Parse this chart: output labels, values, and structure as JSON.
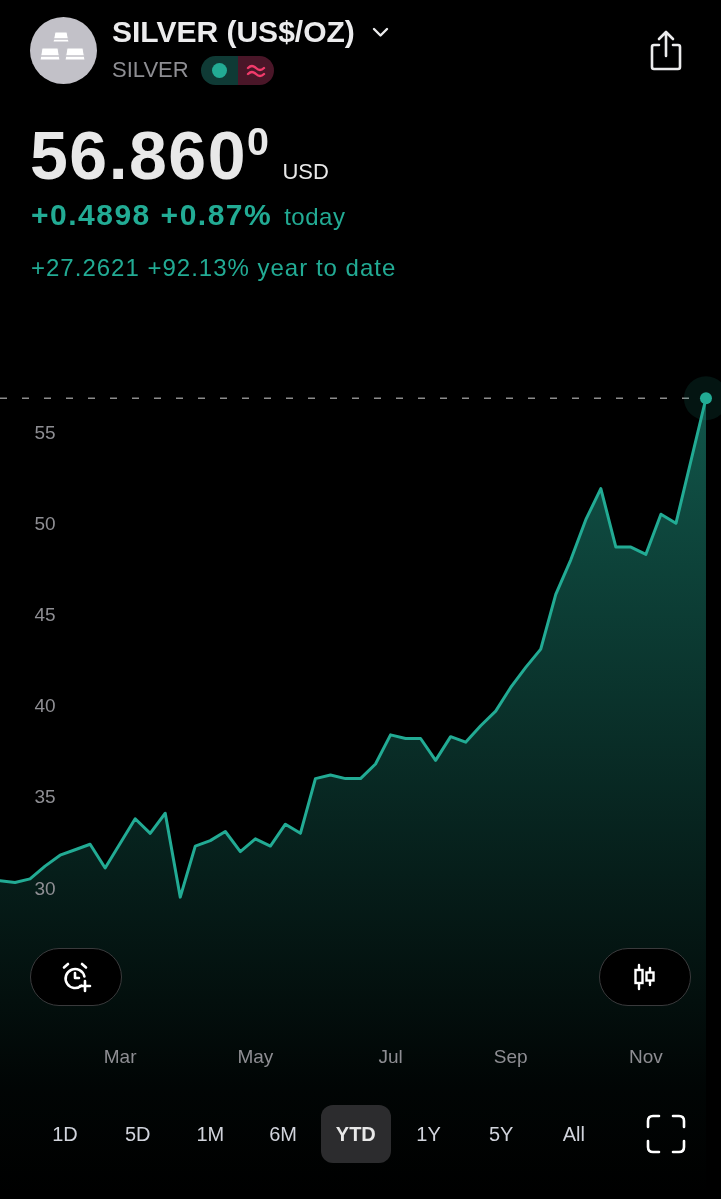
{
  "chart_data": {
    "type": "area",
    "title": "SILVER (US$/OZ)",
    "subtitle": "SILVER",
    "annotations": [
      "56.860$^{0}$",
      "USD",
      "+0.4898 +0.87%",
      "today",
      "+27.2621 +92.13% year to date",
      "1D",
      "5D",
      "1M",
      "6M",
      "YTD",
      "1Y",
      "5Y",
      "All"
    ],
    "x": [
      "--01-06",
      "--01-13",
      "--01-20",
      "--01-27",
      "--02-03",
      "--02-10",
      "--02-17",
      "--02-24",
      "--03-10",
      "--03-17",
      "--03-24",
      "--03-31",
      "--04-07",
      "--04-14",
      "--04-21",
      "--04-28",
      "--05-05",
      "--05-12",
      "--05-19",
      "--05-26",
      "--06-02",
      "--06-09",
      "--06-16",
      "--06-23",
      "--06-30",
      "--07-07",
      "--07-14",
      "--07-21",
      "--07-28",
      "--08-04",
      "--08-11",
      "--08-18",
      "--08-25",
      "--09-01",
      "--09-08",
      "--09-15",
      "--09-22",
      "--09-29",
      "--10-06",
      "--10-13",
      "--10-20",
      "--10-27",
      "--11-03",
      "--11-10",
      "--11-17",
      "--12-01"
    ],
    "series": [
      {
        "type": "area",
        "color": "#22ab94",
        "values": [
          30.4,
          30.3,
          30.5,
          31.2,
          31.8,
          32.1,
          32.4,
          31.1,
          33.8,
          33.0,
          34.1,
          29.5,
          32.3,
          32.6,
          33.1,
          32.0,
          32.7,
          32.3,
          33.5,
          33.0,
          36.0,
          36.2,
          36.0,
          36.0,
          36.8,
          38.4,
          38.2,
          38.2,
          37.0,
          38.3,
          38.0,
          38.9,
          39.7,
          41.0,
          42.1,
          43.1,
          46.1,
          48.0,
          50.2,
          51.9,
          48.7,
          48.7,
          48.3,
          50.5,
          50.0,
          56.86
        ]
      },
      {
        "type": "scatter",
        "x": [
          "--12-01"
        ],
        "values": [
          56.86
        ],
        "color": "#22ab94",
        "marker": "circle"
      }
    ],
    "marker": "none",
    "xlim": [
      "--01-06",
      "--12-08"
    ],
    "xticks": [
      {
        "value": "--03-03",
        "label": "Mar"
      },
      {
        "value": "--05-05",
        "label": "May"
      },
      {
        "value": "--07-07",
        "label": "Jul"
      },
      {
        "value": "--09-01",
        "label": "Sep"
      },
      {
        "value": "--11-03",
        "label": "Nov"
      }
    ],
    "ylim": [
      13.0,
      78.7
    ],
    "yticks": [
      30,
      35,
      40,
      45,
      50,
      55
    ],
    "ref_lines": [
      {
        "axis": "y",
        "value": 56.86,
        "color": "#8c8c8c",
        "line_style": "dashed"
      }
    ]
  }
}
